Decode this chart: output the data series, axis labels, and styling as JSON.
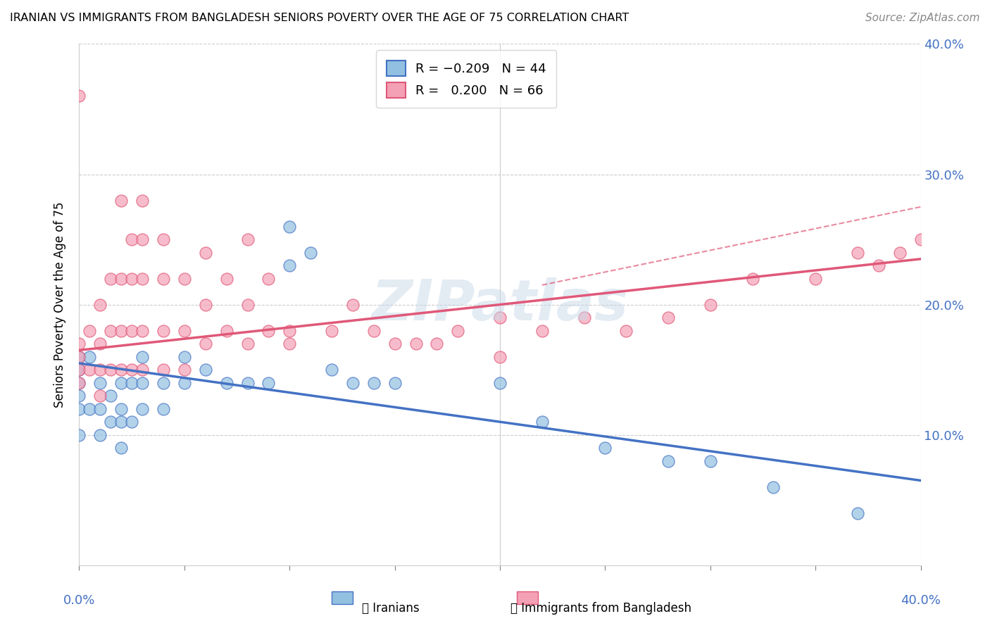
{
  "title": "IRANIAN VS IMMIGRANTS FROM BANGLADESH SENIORS POVERTY OVER THE AGE OF 75 CORRELATION CHART",
  "source": "Source: ZipAtlas.com",
  "ylabel": "Seniors Poverty Over the Age of 75",
  "xlim": [
    0.0,
    0.4
  ],
  "ylim": [
    0.0,
    0.4
  ],
  "ytick_labels_right": [
    "10.0%",
    "20.0%",
    "30.0%",
    "40.0%"
  ],
  "yticks_right": [
    0.1,
    0.2,
    0.3,
    0.4
  ],
  "color_iranians": "#92c0e0",
  "color_bangladesh": "#f4a0b5",
  "color_trend_iranians": "#4472c4",
  "color_trend_bangladesh": "#e05878",
  "background": "#ffffff",
  "iranians_x": [
    0.0,
    0.0,
    0.0,
    0.0,
    0.0,
    0.0,
    0.005,
    0.005,
    0.01,
    0.01,
    0.01,
    0.015,
    0.015,
    0.02,
    0.02,
    0.02,
    0.02,
    0.025,
    0.025,
    0.03,
    0.03,
    0.03,
    0.04,
    0.04,
    0.05,
    0.05,
    0.06,
    0.07,
    0.08,
    0.09,
    0.1,
    0.1,
    0.11,
    0.12,
    0.13,
    0.14,
    0.15,
    0.2,
    0.22,
    0.25,
    0.28,
    0.3,
    0.33,
    0.37
  ],
  "iranians_y": [
    0.16,
    0.15,
    0.14,
    0.13,
    0.12,
    0.1,
    0.16,
    0.12,
    0.14,
    0.12,
    0.1,
    0.13,
    0.11,
    0.14,
    0.12,
    0.11,
    0.09,
    0.14,
    0.11,
    0.16,
    0.14,
    0.12,
    0.14,
    0.12,
    0.16,
    0.14,
    0.15,
    0.14,
    0.14,
    0.14,
    0.26,
    0.23,
    0.24,
    0.15,
    0.14,
    0.14,
    0.14,
    0.14,
    0.11,
    0.09,
    0.08,
    0.08,
    0.06,
    0.04
  ],
  "bangladesh_x": [
    0.0,
    0.0,
    0.0,
    0.0,
    0.0,
    0.005,
    0.005,
    0.01,
    0.01,
    0.01,
    0.01,
    0.015,
    0.015,
    0.015,
    0.02,
    0.02,
    0.02,
    0.02,
    0.025,
    0.025,
    0.025,
    0.025,
    0.03,
    0.03,
    0.03,
    0.03,
    0.03,
    0.04,
    0.04,
    0.04,
    0.04,
    0.05,
    0.05,
    0.05,
    0.06,
    0.06,
    0.06,
    0.07,
    0.07,
    0.08,
    0.08,
    0.08,
    0.09,
    0.09,
    0.1,
    0.1,
    0.12,
    0.13,
    0.14,
    0.15,
    0.16,
    0.17,
    0.18,
    0.2,
    0.2,
    0.22,
    0.24,
    0.26,
    0.28,
    0.3,
    0.32,
    0.35,
    0.37,
    0.38,
    0.39,
    0.4
  ],
  "bangladesh_y": [
    0.17,
    0.16,
    0.15,
    0.14,
    0.36,
    0.18,
    0.15,
    0.2,
    0.17,
    0.15,
    0.13,
    0.22,
    0.18,
    0.15,
    0.28,
    0.22,
    0.18,
    0.15,
    0.25,
    0.22,
    0.18,
    0.15,
    0.28,
    0.25,
    0.22,
    0.18,
    0.15,
    0.25,
    0.22,
    0.18,
    0.15,
    0.22,
    0.18,
    0.15,
    0.24,
    0.2,
    0.17,
    0.22,
    0.18,
    0.25,
    0.2,
    0.17,
    0.22,
    0.18,
    0.18,
    0.17,
    0.18,
    0.2,
    0.18,
    0.17,
    0.17,
    0.17,
    0.18,
    0.19,
    0.16,
    0.18,
    0.19,
    0.18,
    0.19,
    0.2,
    0.22,
    0.22,
    0.24,
    0.23,
    0.24,
    0.25
  ],
  "trend_iran_x0": 0.0,
  "trend_iran_x1": 0.4,
  "trend_iran_y0": 0.155,
  "trend_iran_y1": 0.065,
  "trend_bang_x0": 0.0,
  "trend_bang_x1": 0.4,
  "trend_bang_y0": 0.165,
  "trend_bang_y1": 0.235,
  "trend_bang_dash_x0": 0.22,
  "trend_bang_dash_x1": 0.4,
  "trend_bang_dash_y0": 0.215,
  "trend_bang_dash_y1": 0.275
}
